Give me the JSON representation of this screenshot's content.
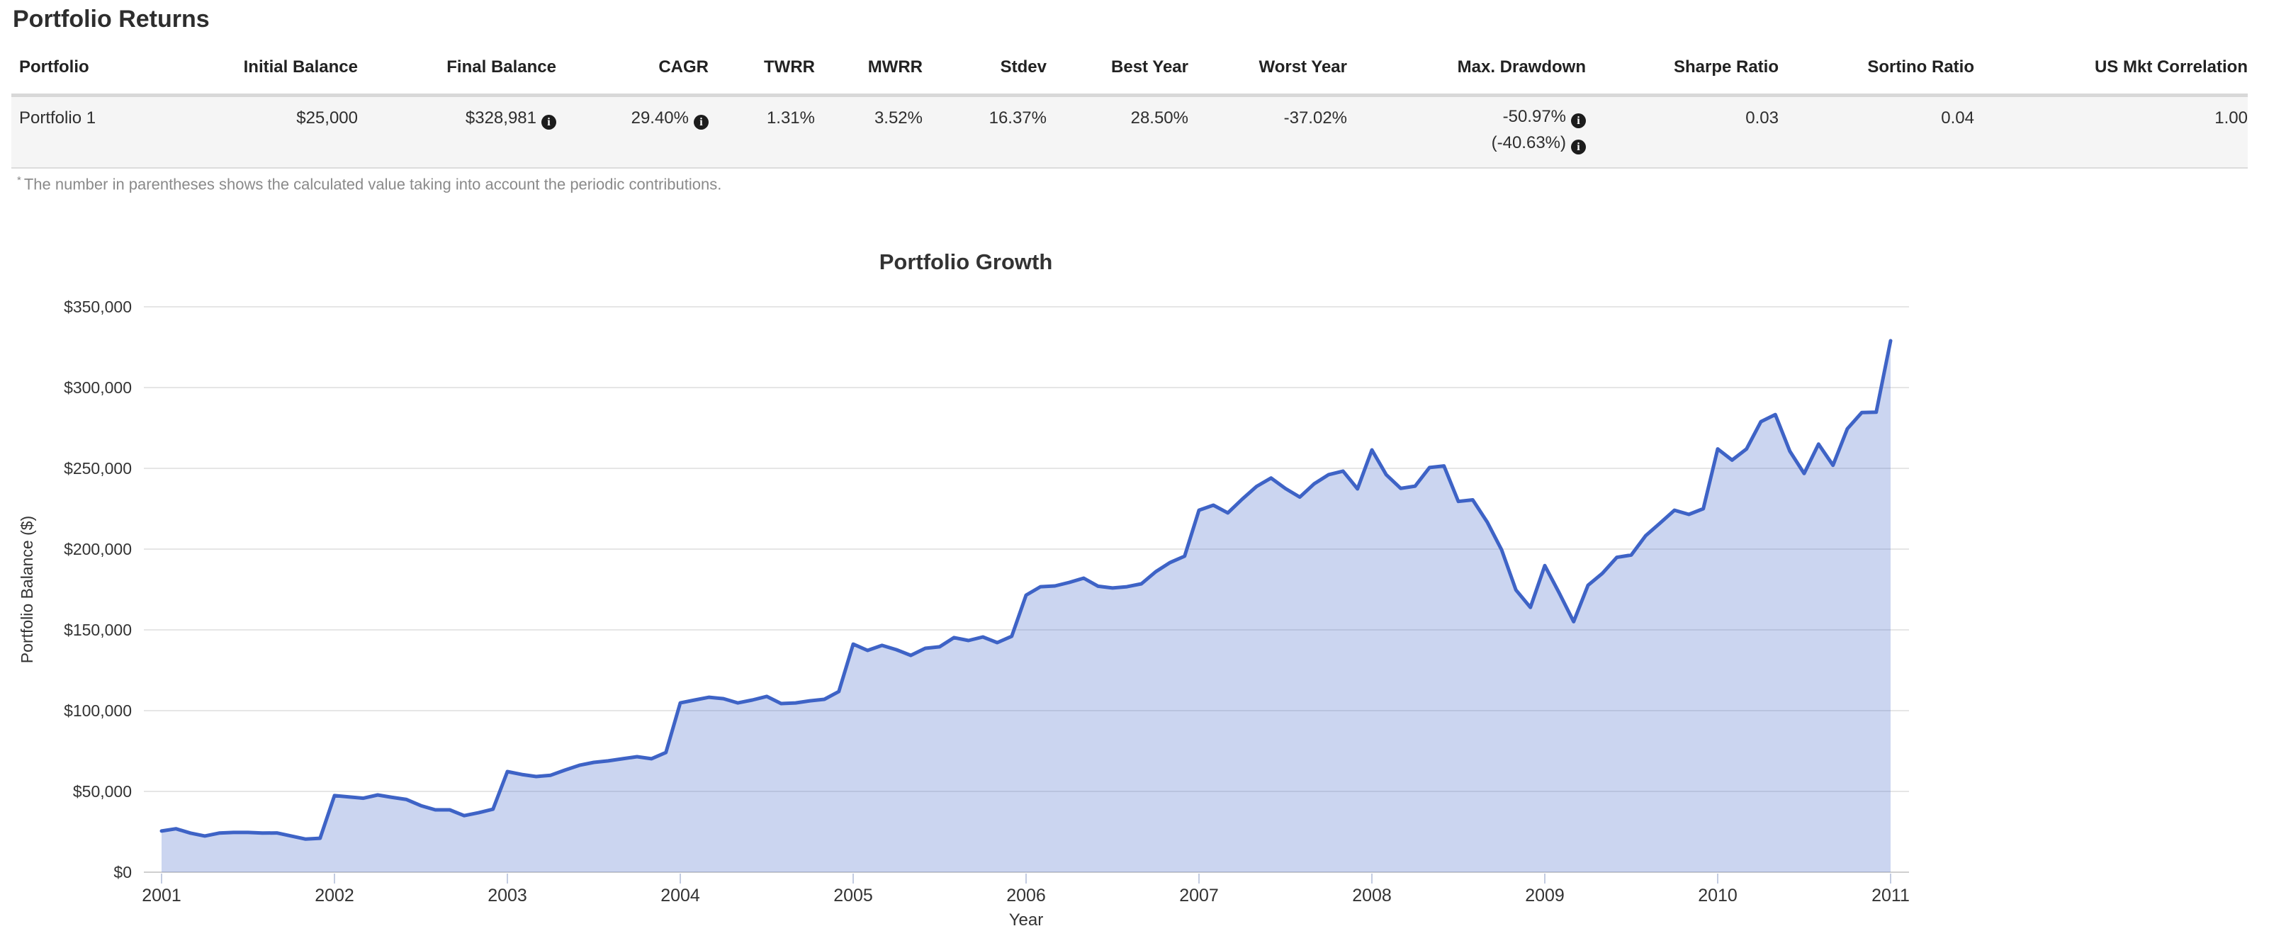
{
  "page_title": "Portfolio Returns",
  "table": {
    "columns": [
      "Portfolio",
      "Initial Balance",
      "Final Balance",
      "CAGR",
      "TWRR",
      "MWRR",
      "Stdev",
      "Best Year",
      "Worst Year",
      "Max. Drawdown",
      "Sharpe Ratio",
      "Sortino Ratio",
      "US Mkt Correlation"
    ],
    "row": {
      "name": "Portfolio 1",
      "initial_balance": "$25,000",
      "final_balance": "$328,981",
      "cagr": "29.40%",
      "twrr": "1.31%",
      "mwrr": "3.52%",
      "stdev": "16.37%",
      "best_year": "28.50%",
      "worst_year": "-37.02%",
      "max_drawdown": "-50.97%",
      "max_drawdown_adjusted": "(-40.63%)",
      "sharpe_ratio": "0.03",
      "sortino_ratio": "0.04",
      "us_mkt_correlation": "1.00"
    },
    "info_icon": "info-icon"
  },
  "footnote": {
    "marker": "*",
    "text": "The number in parentheses shows the calculated value taking into account the periodic contributions."
  },
  "chart_data": {
    "type": "area",
    "title": "Portfolio Growth",
    "xlabel": "Year",
    "ylabel": "Portfolio Balance ($)",
    "x_tick_labels": [
      "2001",
      "2002",
      "2003",
      "2004",
      "2005",
      "2006",
      "2007",
      "2008",
      "2009",
      "2010",
      "2011"
    ],
    "y_tick_labels": [
      "$0",
      "$50,000",
      "$100,000",
      "$150,000",
      "$200,000",
      "$250,000",
      "$300,000",
      "$350,000"
    ],
    "y_tick_values": [
      0,
      50000,
      100000,
      150000,
      200000,
      250000,
      300000,
      350000
    ],
    "ylim": [
      0,
      350000
    ],
    "grid": true,
    "legend": "none",
    "frequency": "monthly",
    "x_start": "2001-01",
    "x_end": "2011-01",
    "line_color": "#3E63C6",
    "fill_color": "rgba(62,99,198,0.27)",
    "gridline_color": "#e6e6e6",
    "axis_color": "#cfcfcf",
    "tick_color": "#c3cce1",
    "series": [
      {
        "name": "Portfolio 1",
        "values": [
          25500,
          26900,
          24200,
          22400,
          24200,
          24600,
          24600,
          24200,
          24300,
          22400,
          20500,
          21000,
          47400,
          46600,
          45800,
          47800,
          46300,
          45000,
          41200,
          38600,
          38600,
          35000,
          36800,
          39000,
          62300,
          60500,
          59200,
          60000,
          63200,
          66200,
          68000,
          68900,
          70200,
          71500,
          70200,
          74100,
          104800,
          106600,
          108300,
          107400,
          104800,
          106600,
          108800,
          104400,
          104800,
          106100,
          107000,
          111800,
          141200,
          137300,
          140400,
          137700,
          134200,
          138600,
          139500,
          145200,
          143400,
          145600,
          142100,
          146000,
          171500,
          176700,
          177200,
          179400,
          182000,
          177000,
          175900,
          176700,
          178500,
          186000,
          191700,
          195600,
          224100,
          227200,
          222400,
          230900,
          238800,
          244000,
          237500,
          232200,
          240500,
          246100,
          248300,
          237300,
          261400,
          246000,
          237600,
          239000,
          250500,
          251500,
          229500,
          230500,
          216800,
          199600,
          174700,
          163900,
          189800,
          172900,
          155100,
          177600,
          185000,
          194900,
          196300,
          208300,
          216100,
          224100,
          221500,
          225000,
          262000,
          255100,
          262000,
          278900,
          283300,
          260700,
          246800,
          265000,
          251900,
          274500,
          284500,
          284800,
          329000
        ]
      }
    ]
  }
}
